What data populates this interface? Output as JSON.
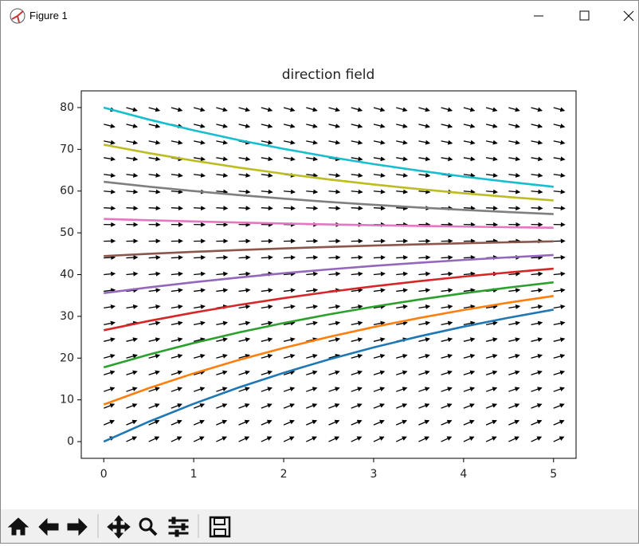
{
  "window": {
    "title": "Figure 1"
  },
  "chart_data": {
    "type": "line",
    "title": "direction field",
    "x": [
      0,
      0.5,
      1,
      1.5,
      2,
      2.5,
      3,
      3.5,
      4,
      4.5,
      5
    ],
    "series": [
      {
        "color": "#1f77b4",
        "values": [
          0,
          4.76,
          9.07,
          12.96,
          16.48,
          19.67,
          22.56,
          25.17,
          27.53,
          29.67,
          31.61
        ]
      },
      {
        "color": "#ff7f0e",
        "values": [
          8.89,
          12.8,
          16.34,
          19.55,
          22.44,
          25.07,
          27.44,
          29.58,
          31.53,
          33.28,
          34.88
        ]
      },
      {
        "color": "#2ca02c",
        "values": [
          17.78,
          20.85,
          23.62,
          26.13,
          28.4,
          30.46,
          32.32,
          34.0,
          35.52,
          36.9,
          38.15
        ]
      },
      {
        "color": "#d62728",
        "values": [
          26.67,
          28.89,
          30.9,
          32.72,
          34.36,
          35.85,
          37.2,
          38.41,
          39.52,
          40.51,
          41.42
        ]
      },
      {
        "color": "#9467bd",
        "values": [
          35.56,
          36.93,
          38.18,
          39.3,
          40.32,
          41.24,
          42.08,
          42.83,
          43.51,
          44.13,
          44.69
        ]
      },
      {
        "color": "#8c564b",
        "values": [
          44.44,
          44.97,
          45.45,
          45.88,
          46.27,
          46.63,
          46.95,
          47.24,
          47.5,
          47.74,
          47.95
        ]
      },
      {
        "color": "#e377c2",
        "values": [
          53.33,
          53.01,
          52.73,
          52.47,
          52.23,
          52.02,
          51.83,
          51.65,
          51.5,
          51.35,
          51.23
        ]
      },
      {
        "color": "#7f7f7f",
        "values": [
          62.22,
          61.06,
          60.01,
          59.05,
          58.19,
          57.41,
          56.71,
          56.07,
          55.49,
          54.97,
          54.5
        ]
      },
      {
        "color": "#bcbd22",
        "values": [
          71.11,
          69.1,
          67.28,
          65.64,
          64.15,
          62.8,
          61.59,
          60.48,
          59.49,
          58.58,
          57.77
        ]
      },
      {
        "color": "#17becf",
        "values": [
          80,
          77.14,
          74.56,
          72.22,
          70.11,
          68.2,
          66.46,
          64.9,
          63.48,
          62.2,
          61.04
        ]
      }
    ],
    "quiver": {
      "color": "#000000",
      "x": [
        0,
        0.25,
        0.5,
        0.75,
        1,
        1.25,
        1.5,
        1.75,
        2,
        2.25,
        2.5,
        2.75,
        3,
        3.25,
        3.5,
        3.75,
        4,
        4.25,
        4.5,
        4.75,
        5
      ],
      "y": [
        0,
        4,
        8,
        12,
        16,
        20,
        24,
        28,
        32,
        36,
        40,
        44,
        48,
        52,
        56,
        60,
        64,
        68,
        72,
        76,
        80
      ],
      "dydt": [
        10,
        9.2,
        8.4,
        7.6,
        6.8,
        6,
        5.2,
        4.4,
        3.6,
        2.8,
        2,
        1.2,
        0.4,
        -0.4,
        -1.2,
        -2,
        -2.8,
        -3.6,
        -4.4,
        -5.2,
        -6
      ]
    },
    "xlim": [
      -0.25,
      5.25
    ],
    "ylim": [
      -4,
      84
    ],
    "xticks": [
      0,
      1,
      2,
      3,
      4,
      5
    ],
    "yticks": [
      0,
      10,
      20,
      30,
      40,
      50,
      60,
      70,
      80
    ]
  }
}
